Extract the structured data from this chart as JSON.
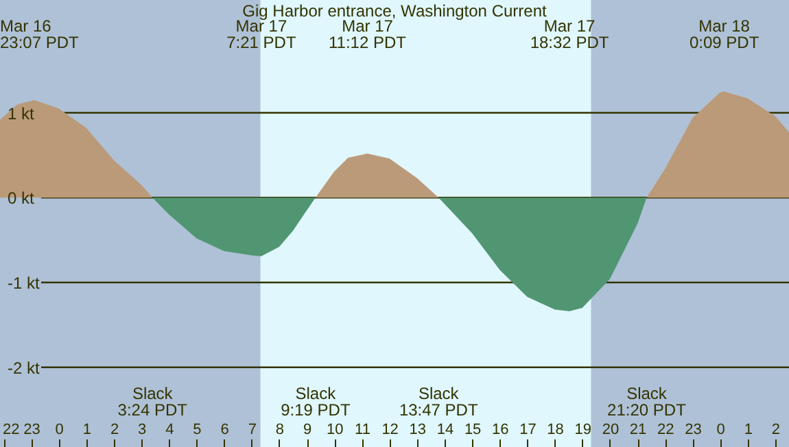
{
  "chart_data": {
    "type": "area",
    "title": "Gig Harbor entrance, Washington Current",
    "x": [
      "--03-16T21:52",
      "--03-16T22:30",
      "--03-16T23:07",
      "--03-17T00:00",
      "--03-17T01:00",
      "--03-17T02:00",
      "--03-17T03:00",
      "--03-17T03:24",
      "--03-17T04:00",
      "--03-17T05:00",
      "--03-17T06:00",
      "--03-17T07:00",
      "--03-17T07:21",
      "--03-17T08:00",
      "--03-17T08:30",
      "--03-17T09:00",
      "--03-17T09:19",
      "--03-17T10:00",
      "--03-17T10:30",
      "--03-17T11:12",
      "--03-17T12:00",
      "--03-17T13:00",
      "--03-17T13:47",
      "--03-17T15:00",
      "--03-17T16:00",
      "--03-17T17:00",
      "--03-17T18:00",
      "--03-17T18:32",
      "--03-17T19:00",
      "--03-17T20:00",
      "--03-17T21:00",
      "--03-17T21:20",
      "--03-17T22:00",
      "--03-17T23:00",
      "--03-18T00:00",
      "--03-18T00:09",
      "--03-18T01:00",
      "--03-18T02:00",
      "--03-18T02:30"
    ],
    "series": [
      {
        "color": "#bb9a7a",
        "values": [
          0.92,
          1.1,
          1.15,
          1.05,
          0.82,
          0.44,
          0.15,
          0,
          null,
          null,
          null,
          null,
          null,
          null,
          null,
          null,
          0,
          0.31,
          0.47,
          0.52,
          0.46,
          0.23,
          0,
          null,
          null,
          null,
          null,
          null,
          null,
          null,
          null,
          0,
          0.34,
          0.94,
          1.24,
          1.25,
          1.17,
          0.96,
          0.77
        ]
      },
      {
        "color": "#519673",
        "values": [
          null,
          null,
          null,
          null,
          null,
          null,
          null,
          0,
          -0.2,
          -0.48,
          -0.63,
          -0.68,
          -0.69,
          -0.58,
          -0.39,
          -0.15,
          0,
          null,
          null,
          null,
          null,
          null,
          0,
          -0.42,
          -0.85,
          -1.17,
          -1.32,
          -1.34,
          -1.3,
          -0.96,
          -0.31,
          0,
          null,
          null,
          null,
          null,
          null,
          null,
          null
        ]
      }
    ],
    "xlim": [
      "--03-16T21:52",
      "--03-18T02:30"
    ],
    "xticks": [
      {
        "value": "--03-16T22:00",
        "label": "22"
      },
      {
        "value": "--03-16T23:00",
        "label": "23"
      },
      {
        "value": "--03-17T00:00",
        "label": "0"
      },
      {
        "value": "--03-17T01:00",
        "label": "1"
      },
      {
        "value": "--03-17T02:00",
        "label": "2"
      },
      {
        "value": "--03-17T03:00",
        "label": "3"
      },
      {
        "value": "--03-17T04:00",
        "label": "4"
      },
      {
        "value": "--03-17T05:00",
        "label": "5"
      },
      {
        "value": "--03-17T06:00",
        "label": "6"
      },
      {
        "value": "--03-17T07:00",
        "label": "7"
      },
      {
        "value": "--03-17T08:00",
        "label": "8"
      },
      {
        "value": "--03-17T09:00",
        "label": "9"
      },
      {
        "value": "--03-17T10:00",
        "label": "10"
      },
      {
        "value": "--03-17T11:00",
        "label": "11"
      },
      {
        "value": "--03-17T12:00",
        "label": "12"
      },
      {
        "value": "--03-17T13:00",
        "label": "13"
      },
      {
        "value": "--03-17T14:00",
        "label": "14"
      },
      {
        "value": "--03-17T15:00",
        "label": "15"
      },
      {
        "value": "--03-17T16:00",
        "label": "16"
      },
      {
        "value": "--03-17T17:00",
        "label": "17"
      },
      {
        "value": "--03-17T18:00",
        "label": "18"
      },
      {
        "value": "--03-17T19:00",
        "label": "19"
      },
      {
        "value": "--03-17T20:00",
        "label": "20"
      },
      {
        "value": "--03-17T21:00",
        "label": "21"
      },
      {
        "value": "--03-17T22:00",
        "label": "22"
      },
      {
        "value": "--03-17T23:00",
        "label": "23"
      },
      {
        "value": "--03-18T00:00",
        "label": "0"
      },
      {
        "value": "--03-18T01:00",
        "label": "1"
      },
      {
        "value": "--03-18T02:00",
        "label": "2"
      }
    ],
    "ylim": [
      -2.94,
      2.33
    ],
    "yticks": [
      {
        "value": 1,
        "label": "1 kt"
      },
      {
        "value": 0,
        "label": "0 kt"
      },
      {
        "value": -1,
        "label": "-1 kt"
      },
      {
        "value": -2,
        "label": "-2 kt"
      }
    ],
    "grid": "y",
    "bands": [
      {
        "axis": "x",
        "from": "--03-16T21:52",
        "to": "--03-17T07:19",
        "color": "#afc1d6"
      },
      {
        "axis": "x",
        "from": "--03-17T19:19",
        "to": "--03-18T02:30",
        "color": "#afc1d6"
      }
    ],
    "annotations": [
      "Mar 16\n23:07 PDT",
      "Mar 17\n7:21 PDT",
      "Mar 17\n11:12 PDT",
      "Mar 17\n18:32 PDT",
      "Mar 18\n0:09 PDT",
      "Slack\n3:24 PDT",
      "Slack\n9:19 PDT",
      "Slack\n13:47 PDT",
      "Slack\n21:20 PDT"
    ]
  }
}
